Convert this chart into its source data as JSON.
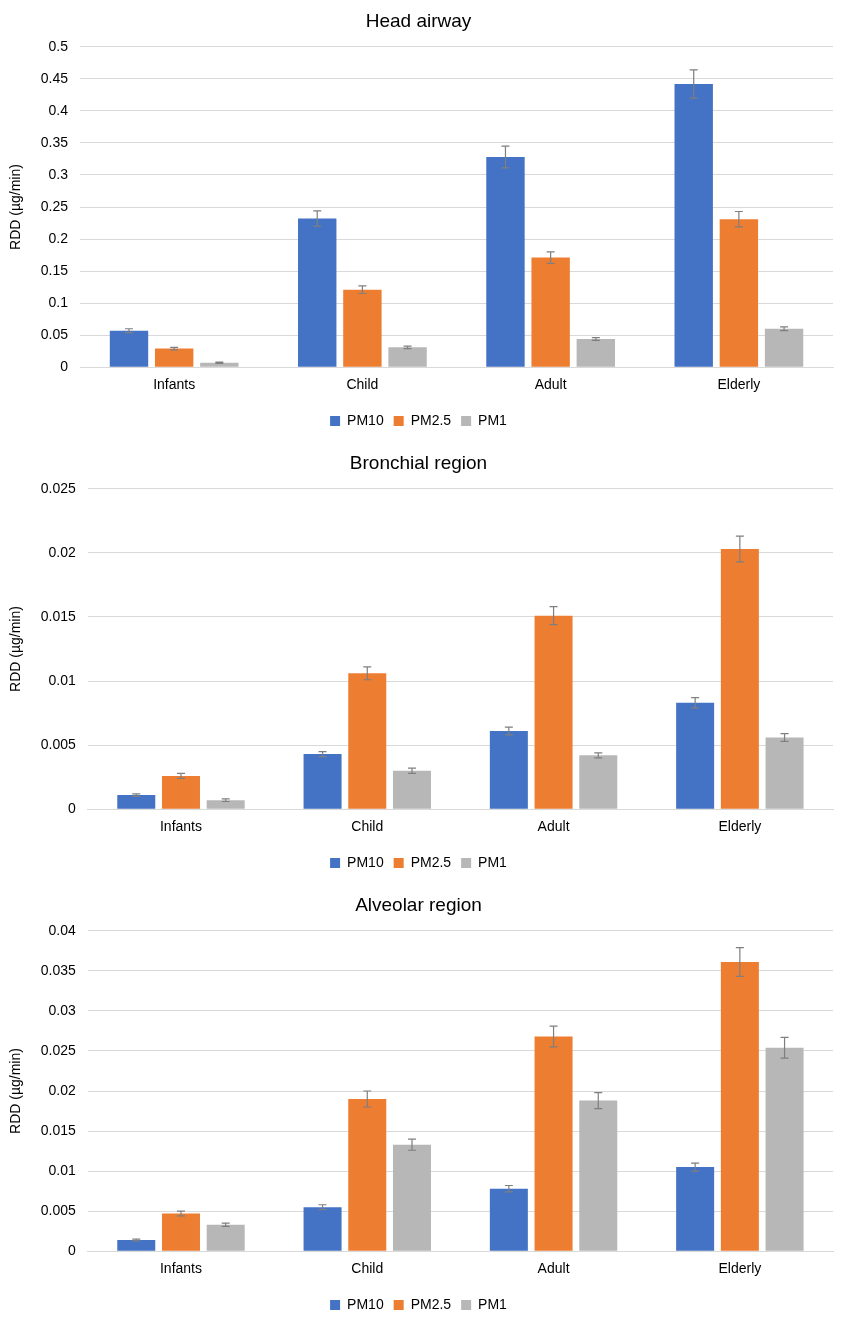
{
  "chart_data": [
    {
      "type": "bar",
      "title": "Head airway",
      "ylabel": "RDD (µg/min)",
      "categories": [
        "Infants",
        "Child",
        "Adult",
        "Elderly"
      ],
      "ylim": [
        0,
        0.5
      ],
      "yticks": [
        0,
        0.05,
        0.1,
        0.15,
        0.2,
        0.25,
        0.3,
        0.35,
        0.4,
        0.45,
        0.5
      ],
      "grid": "y",
      "legend": "bottom",
      "series": [
        {
          "name": "PM10",
          "color": "#4472c4",
          "values": [
            0.057,
            0.232,
            0.328,
            0.442
          ],
          "errors": [
            0.003,
            0.012,
            0.017,
            0.022
          ]
        },
        {
          "name": "PM2.5",
          "color": "#ed7d31",
          "values": [
            0.029,
            0.121,
            0.171,
            0.231
          ],
          "errors": [
            0.002,
            0.006,
            0.009,
            0.012
          ]
        },
        {
          "name": "PM1",
          "color": "#b7b7b7",
          "values": [
            0.007,
            0.031,
            0.044,
            0.06
          ],
          "errors": [
            0.001,
            0.002,
            0.002,
            0.003
          ]
        }
      ]
    },
    {
      "type": "bar",
      "title": "Bronchial region",
      "ylabel": "RDD (µg/min)",
      "categories": [
        "Infants",
        "Child",
        "Adult",
        "Elderly"
      ],
      "ylim": [
        0,
        0.025
      ],
      "yticks": [
        0,
        0.005,
        0.01,
        0.015,
        0.02,
        0.025
      ],
      "grid": "y",
      "legend": "bottom",
      "series": [
        {
          "name": "PM10",
          "color": "#4472c4",
          "values": [
            0.0011,
            0.0043,
            0.0061,
            0.0083
          ],
          "errors": [
            0.0001,
            0.0002,
            0.0003,
            0.0004
          ]
        },
        {
          "name": "PM2.5",
          "color": "#ed7d31",
          "values": [
            0.0026,
            0.0106,
            0.0151,
            0.0203
          ],
          "errors": [
            0.0002,
            0.0005,
            0.0007,
            0.001
          ]
        },
        {
          "name": "PM1",
          "color": "#b7b7b7",
          "values": [
            0.0007,
            0.003,
            0.0042,
            0.0056
          ],
          "errors": [
            0.0001,
            0.0002,
            0.0002,
            0.0003
          ]
        }
      ]
    },
    {
      "type": "bar",
      "title": "Alveolar region",
      "ylabel": "RDD (µg/min)",
      "categories": [
        "Infants",
        "Child",
        "Adult",
        "Elderly"
      ],
      "ylim": [
        0,
        0.04
      ],
      "yticks": [
        0,
        0.005,
        0.01,
        0.015,
        0.02,
        0.025,
        0.03,
        0.035,
        0.04
      ],
      "grid": "y",
      "legend": "bottom",
      "series": [
        {
          "name": "PM10",
          "color": "#4472c4",
          "values": [
            0.0014,
            0.0055,
            0.0078,
            0.0105
          ],
          "errors": [
            0.0001,
            0.0003,
            0.0004,
            0.0005
          ]
        },
        {
          "name": "PM2.5",
          "color": "#ed7d31",
          "values": [
            0.0047,
            0.019,
            0.0268,
            0.0361
          ],
          "errors": [
            0.0003,
            0.001,
            0.0013,
            0.0018
          ]
        },
        {
          "name": "PM1",
          "color": "#b7b7b7",
          "values": [
            0.0033,
            0.0133,
            0.0188,
            0.0254
          ],
          "errors": [
            0.0002,
            0.0007,
            0.001,
            0.0013
          ]
        }
      ]
    }
  ]
}
